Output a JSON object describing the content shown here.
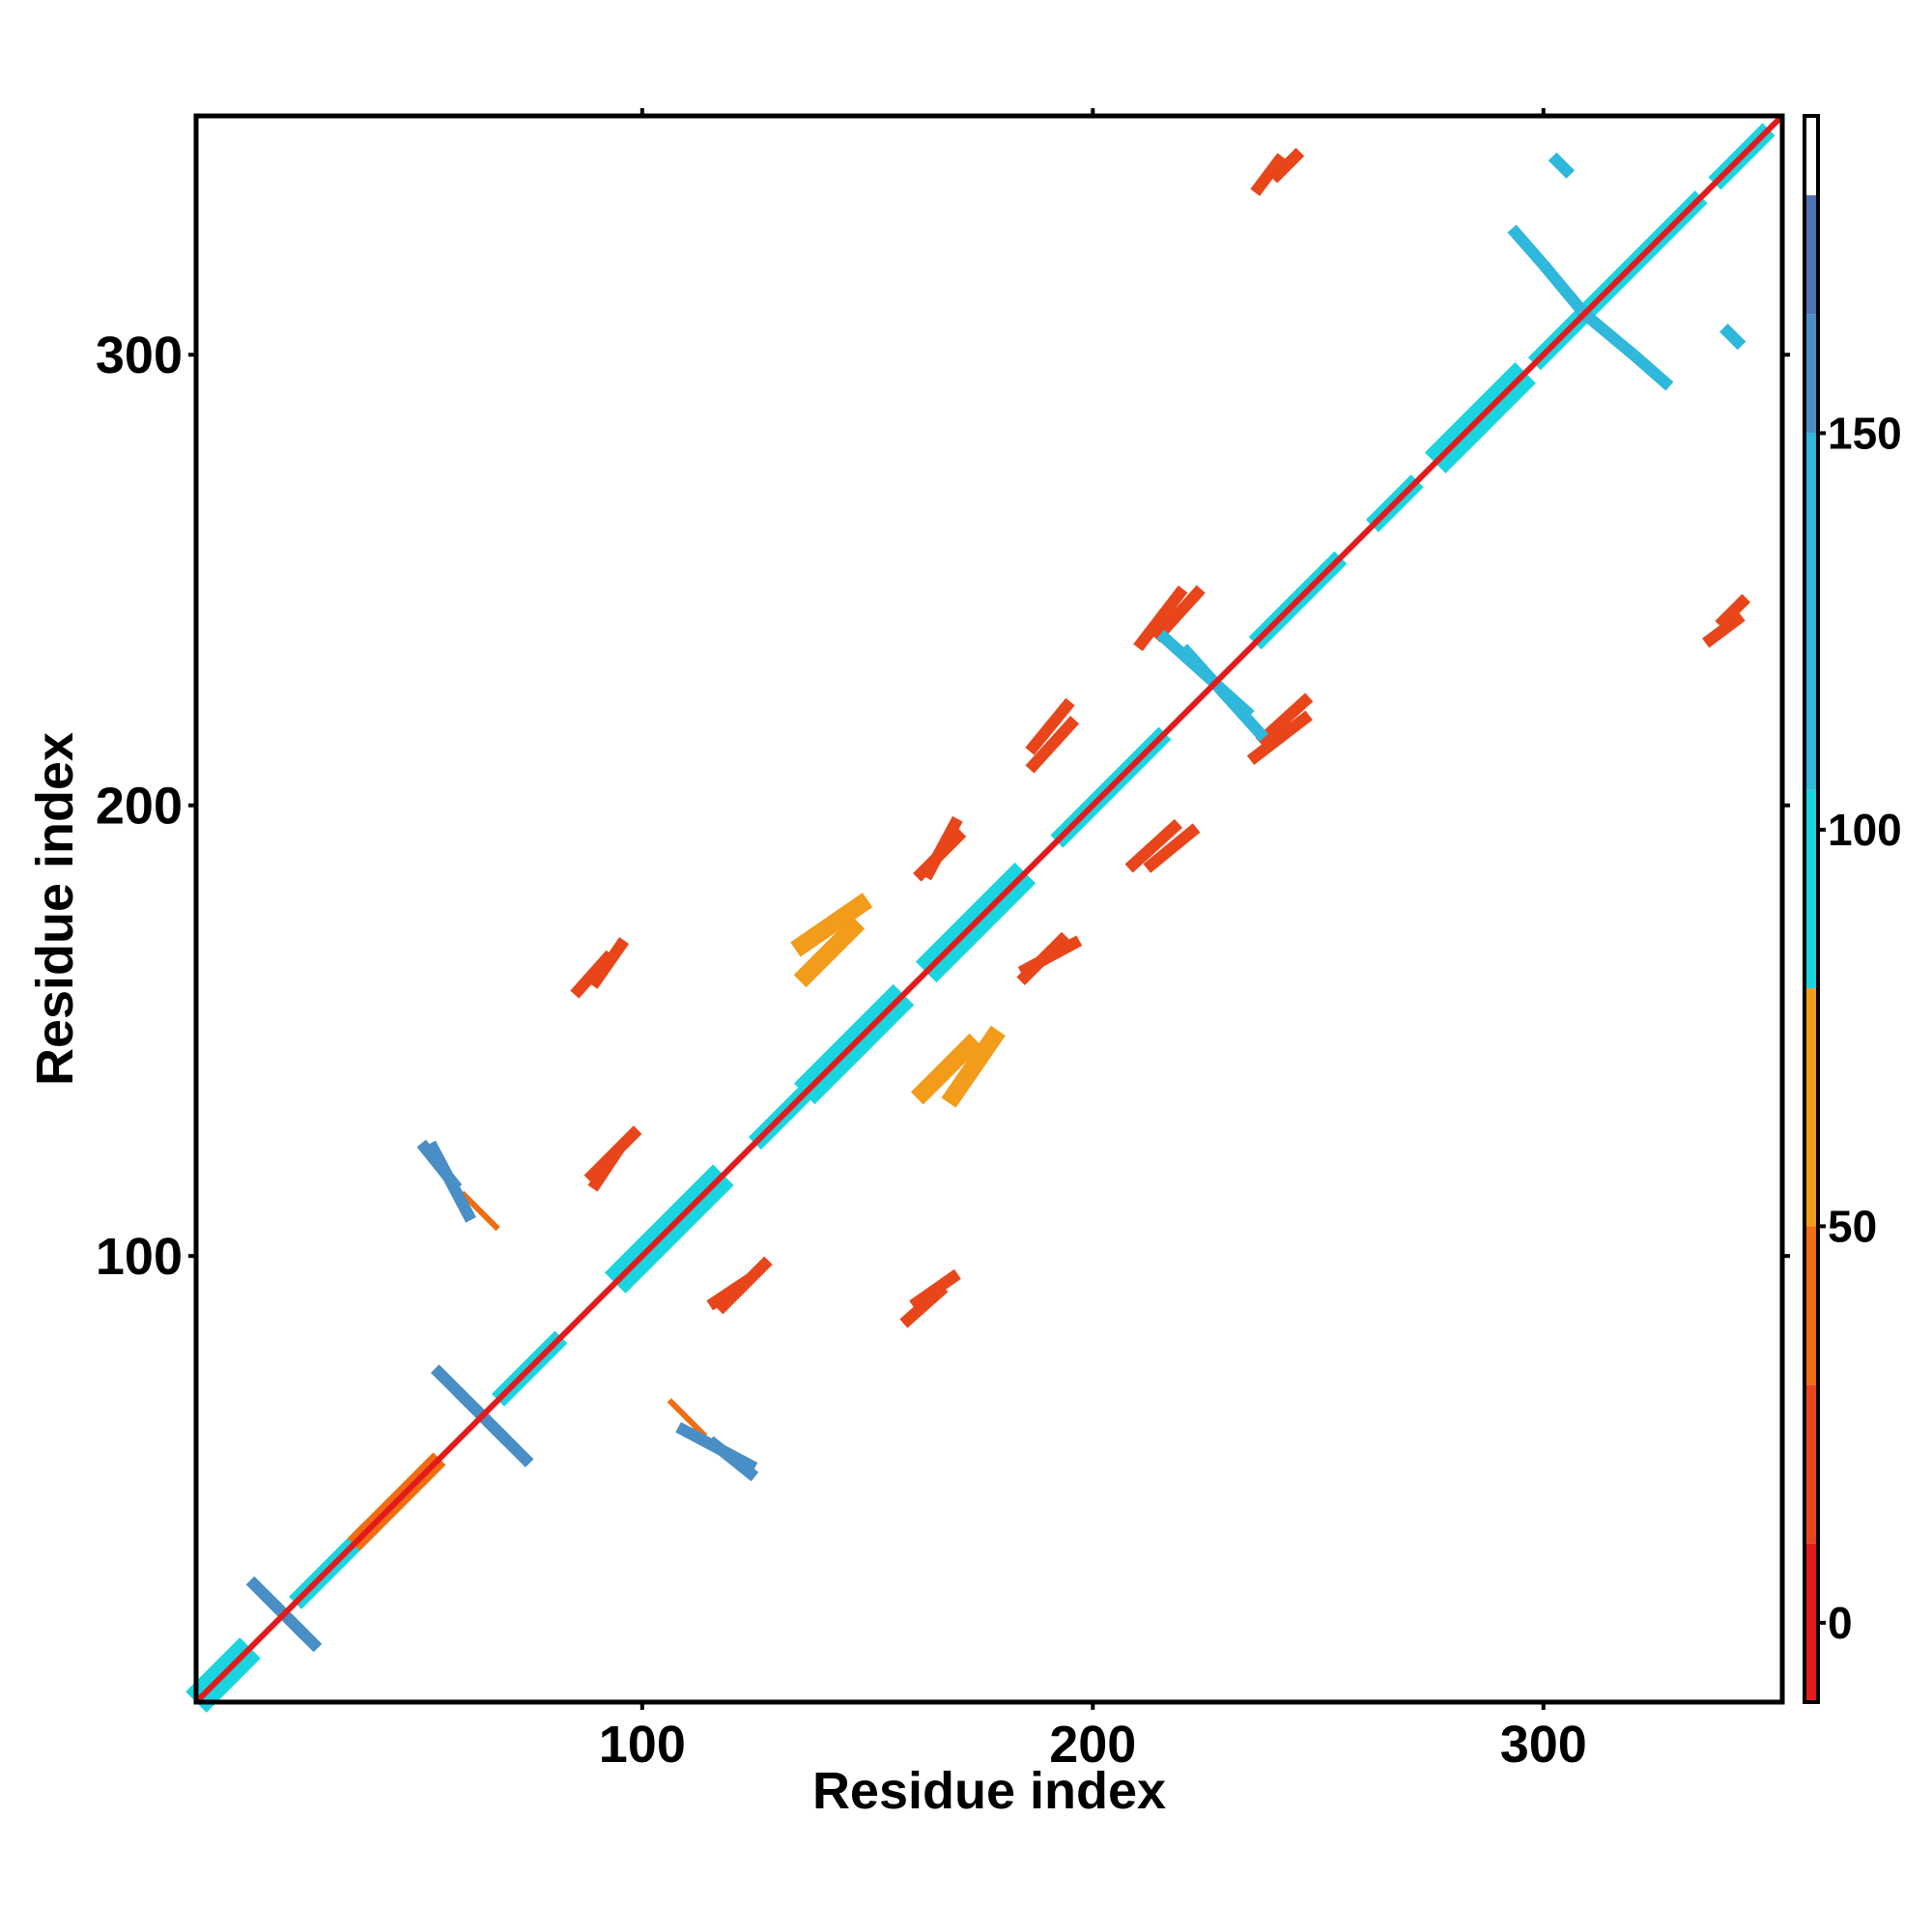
{
  "chart_data": {
    "type": "heatmap",
    "title": "",
    "xlabel": "Residue index",
    "ylabel": "Residue index",
    "xlim": [
      1,
      353
    ],
    "ylim": [
      1,
      353
    ],
    "x_ticks": [
      100,
      200,
      300
    ],
    "y_ticks": [
      100,
      200,
      300
    ],
    "grid": false,
    "symmetric": true,
    "colorbar": {
      "placement": "right",
      "range": [
        -10,
        190
      ],
      "ticks": [
        0,
        50,
        100,
        150
      ],
      "bands": [
        {
          "from": -10,
          "to": 10,
          "color": "#e31a1c"
        },
        {
          "from": 10,
          "to": 30,
          "color": "#e8461a"
        },
        {
          "from": 30,
          "to": 50,
          "color": "#f06d12"
        },
        {
          "from": 50,
          "to": 80,
          "color": "#f39b1b"
        },
        {
          "from": 80,
          "to": 105,
          "color": "#1ad5e0"
        },
        {
          "from": 105,
          "to": 150,
          "color": "#2fb7dc"
        },
        {
          "from": 150,
          "to": 165,
          "color": "#4a8ec6"
        },
        {
          "from": 165,
          "to": 180,
          "color": "#4f74b4"
        },
        {
          "from": 180,
          "to": 190,
          "color": "#ffffff"
        }
      ]
    },
    "diagonal_value": 5,
    "contacts": [
      {
        "x": [
          1,
          13
        ],
        "y": [
          1,
          13
        ],
        "value": 95,
        "width": 5
      },
      {
        "x": [
          16,
          28
        ],
        "y": [
          25,
          13
        ],
        "value": 155,
        "width": 2
      },
      {
        "x": [
          23,
          40
        ],
        "y": [
          23,
          40
        ],
        "value": 95,
        "width": 3
      },
      {
        "x": [
          36,
          55
        ],
        "y": [
          36,
          55
        ],
        "value": 40,
        "width": 3
      },
      {
        "x": [
          51,
          59
        ],
        "y": [
          125,
          115
        ],
        "value": 160,
        "width": 2
      },
      {
        "x": [
          54,
          70
        ],
        "y": [
          75,
          59
        ],
        "value": 155,
        "width": 2
      },
      {
        "x": [
          60,
          68
        ],
        "y": [
          114,
          106
        ],
        "value": 40,
        "width": 1
      },
      {
        "x": [
          68,
          82
        ],
        "y": [
          68,
          82
        ],
        "value": 95,
        "width": 3
      },
      {
        "x": [
          108,
          125
        ],
        "y": [
          62,
          53
        ],
        "value": 155,
        "width": 2
      },
      {
        "x": [
          88,
          99
        ],
        "y": [
          117,
          128
        ],
        "value": 10,
        "width": 2
      },
      {
        "x": [
          94,
          118
        ],
        "y": [
          94,
          118
        ],
        "value": 95,
        "width": 5
      },
      {
        "x": [
          115,
          124
        ],
        "y": [
          89,
          95
        ],
        "value": 10,
        "width": 2
      },
      {
        "x": [
          125,
          140
        ],
        "y": [
          125,
          140
        ],
        "value": 100,
        "width": 3
      },
      {
        "x": [
          136,
          158
        ],
        "y": [
          136,
          158
        ],
        "value": 95,
        "width": 5
      },
      {
        "x": [
          85,
          93
        ],
        "y": [
          158,
          167
        ],
        "value": 10,
        "width": 2
      },
      {
        "x": [
          134,
          150
        ],
        "y": [
          168,
          179
        ],
        "value": 55,
        "width": 3
      },
      {
        "x": [
          160,
          170
        ],
        "y": [
          89,
          96
        ],
        "value": 10,
        "width": 2
      },
      {
        "x": [
          161,
          174
        ],
        "y": [
          135,
          148
        ],
        "value": 55,
        "width": 3
      },
      {
        "x": [
          163,
          185
        ],
        "y": [
          163,
          185
        ],
        "value": 100,
        "width": 5
      },
      {
        "x": [
          161,
          171
        ],
        "y": [
          184,
          194
        ],
        "value": 10,
        "width": 2
      },
      {
        "x": [
          184,
          197
        ],
        "y": [
          163,
          170
        ],
        "value": 10,
        "width": 2
      },
      {
        "x": [
          186,
          196
        ],
        "y": [
          208,
          219
        ],
        "value": 10,
        "width": 2
      },
      {
        "x": [
          192,
          216
        ],
        "y": [
          192,
          216
        ],
        "value": 95,
        "width": 3
      },
      {
        "x": [
          212,
          223
        ],
        "y": [
          186,
          195
        ],
        "value": 10,
        "width": 2
      },
      {
        "x": [
          214,
          224
        ],
        "y": [
          237,
          248
        ],
        "value": 10,
        "width": 2
      },
      {
        "x": [
          220,
          238
        ],
        "y": [
          235,
          215
        ],
        "value": 120,
        "width": 2
      },
      {
        "x": [
          235,
          248
        ],
        "y": [
          210,
          220
        ],
        "value": 10,
        "width": 2
      },
      {
        "x": [
          236,
          255
        ],
        "y": [
          236,
          255
        ],
        "value": 100,
        "width": 3
      },
      {
        "x": [
          240,
          246
        ],
        "y": [
          339,
          345
        ],
        "value": 10,
        "width": 2
      },
      {
        "x": [
          262,
          272
        ],
        "y": [
          262,
          272
        ],
        "value": 100,
        "width": 3
      },
      {
        "x": [
          276,
          296
        ],
        "y": [
          276,
          296
        ],
        "value": 95,
        "width": 5
      },
      {
        "x": [
          298,
          315
        ],
        "y": [
          298,
          315
        ],
        "value": 100,
        "width": 3
      },
      {
        "x": [
          300,
          310
        ],
        "y": [
          320,
          308
        ],
        "value": 120,
        "width": 2
      },
      {
        "x": [
          315,
          335
        ],
        "y": [
          315,
          335
        ],
        "value": 95,
        "width": 3
      },
      {
        "x": [
          320,
          328
        ],
        "y": [
          300,
          293
        ],
        "value": 120,
        "width": 2
      },
      {
        "x": [
          336,
          344
        ],
        "y": [
          236,
          242
        ],
        "value": 10,
        "width": 2
      },
      {
        "x": [
          338,
          350
        ],
        "y": [
          338,
          350
        ],
        "value": 95,
        "width": 3
      },
      {
        "x": [
          340,
          344
        ],
        "y": [
          306,
          302
        ],
        "value": 110,
        "width": 2
      }
    ]
  }
}
